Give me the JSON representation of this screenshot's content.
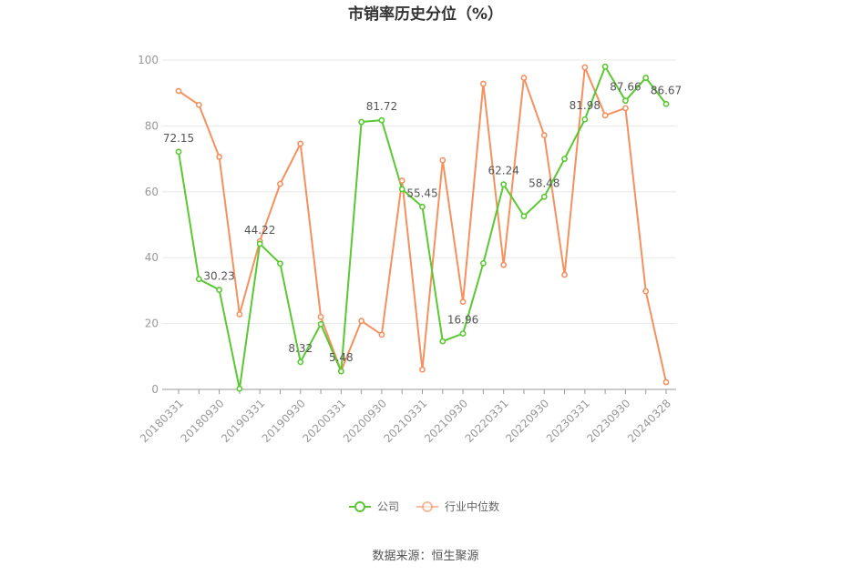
{
  "chart_data": {
    "type": "line",
    "title": "市销率历史分位（%）",
    "xlabel": "",
    "ylabel": "",
    "ylim": [
      0,
      100
    ],
    "yticks": [
      0,
      20,
      40,
      60,
      80,
      100
    ],
    "grid": true,
    "legend_position": "bottom",
    "x": [
      "20180331",
      "20180630",
      "20180930",
      "20181231",
      "20190331",
      "20190630",
      "20190930",
      "20191231",
      "20200331",
      "20200630",
      "20200930",
      "20201231",
      "20210331",
      "20210630",
      "20210930",
      "20211231",
      "20220331",
      "20220630",
      "20220930",
      "20221230",
      "20230331",
      "20230630",
      "20230930",
      "20231229",
      "20240328"
    ],
    "x_tick_labels": [
      "20180331",
      "20180930",
      "20190331",
      "20190930",
      "20200331",
      "20200930",
      "20210331",
      "20210930",
      "20220331",
      "20220930",
      "20230331",
      "20230930",
      "20240328"
    ],
    "series": [
      {
        "name": "公司",
        "color": "#5ac832",
        "values": [
          72.15,
          33.5,
          30.23,
          0.2,
          44.22,
          38.2,
          8.32,
          19.8,
          5.48,
          81.2,
          81.72,
          60.8,
          55.45,
          14.6,
          16.96,
          38.3,
          62.24,
          52.6,
          58.48,
          70.0,
          81.98,
          98.0,
          87.66,
          94.6,
          86.67
        ],
        "labels": {
          "0": "72.15",
          "2": "30.23",
          "4": "44.22",
          "6": "8.32",
          "8": "5.48",
          "10": "81.72",
          "12": "55.45",
          "14": "16.96",
          "16": "62.24",
          "18": "58.48",
          "20": "81.98",
          "22": "87.66",
          "24": "86.67"
        }
      },
      {
        "name": "行业中位数",
        "color": "#f5905f",
        "values": [
          90.6,
          86.4,
          70.6,
          22.8,
          45.0,
          62.4,
          74.6,
          22.0,
          5.6,
          20.8,
          16.6,
          63.4,
          6.0,
          69.6,
          26.6,
          92.8,
          37.8,
          94.6,
          77.2,
          34.8,
          97.8,
          83.2,
          85.4,
          29.8,
          2.2
        ]
      }
    ]
  },
  "source": "数据来源：恒生聚源"
}
